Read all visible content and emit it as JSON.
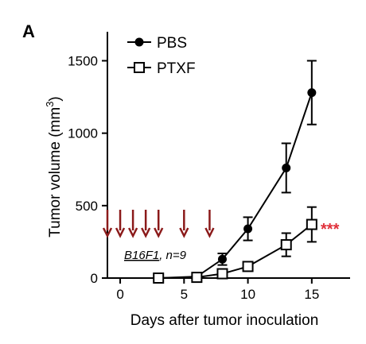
{
  "panel_label": "A",
  "colors": {
    "axis": "#000000",
    "pbs_marker": "#000000",
    "ptxf_marker_fill": "#ffffff",
    "arrows": "#8b1a1a",
    "significance": "#e0303a"
  },
  "chart_data": {
    "type": "line",
    "xlabel": "Days after tumor inoculation",
    "ylabel": "Tumor volume (mm",
    "ylabel_sup": "3",
    "ylabel_close": ")",
    "xlim": [
      -1,
      18
    ],
    "ylim": [
      0,
      1700
    ],
    "x_ticks": [
      0,
      5,
      10,
      15
    ],
    "y_ticks": [
      0,
      500,
      1000,
      1500
    ],
    "grid": false,
    "legend_position": "top-left",
    "series": [
      {
        "name": "PBS",
        "marker": "filled-circle",
        "points": [
          {
            "x": 3,
            "y": 0,
            "err": 0
          },
          {
            "x": 6,
            "y": 10,
            "err": 5
          },
          {
            "x": 8,
            "y": 130,
            "err": 40
          },
          {
            "x": 10,
            "y": 340,
            "err": 80
          },
          {
            "x": 13,
            "y": 760,
            "err": 170
          },
          {
            "x": 15,
            "y": 1280,
            "err": 220
          }
        ]
      },
      {
        "name": "PTXF",
        "marker": "open-square",
        "points": [
          {
            "x": 3,
            "y": 0,
            "err": 0
          },
          {
            "x": 6,
            "y": 5,
            "err": 5
          },
          {
            "x": 8,
            "y": 30,
            "err": 15
          },
          {
            "x": 10,
            "y": 80,
            "err": 25
          },
          {
            "x": 13,
            "y": 230,
            "err": 80
          },
          {
            "x": 15,
            "y": 370,
            "err": 120
          }
        ]
      }
    ],
    "treatment_arrows_days": [
      -1,
      0,
      1,
      2,
      3,
      5,
      7
    ],
    "annotation_main": "B16F1",
    "annotation_rest": ", n=9",
    "significance_label": "***"
  }
}
